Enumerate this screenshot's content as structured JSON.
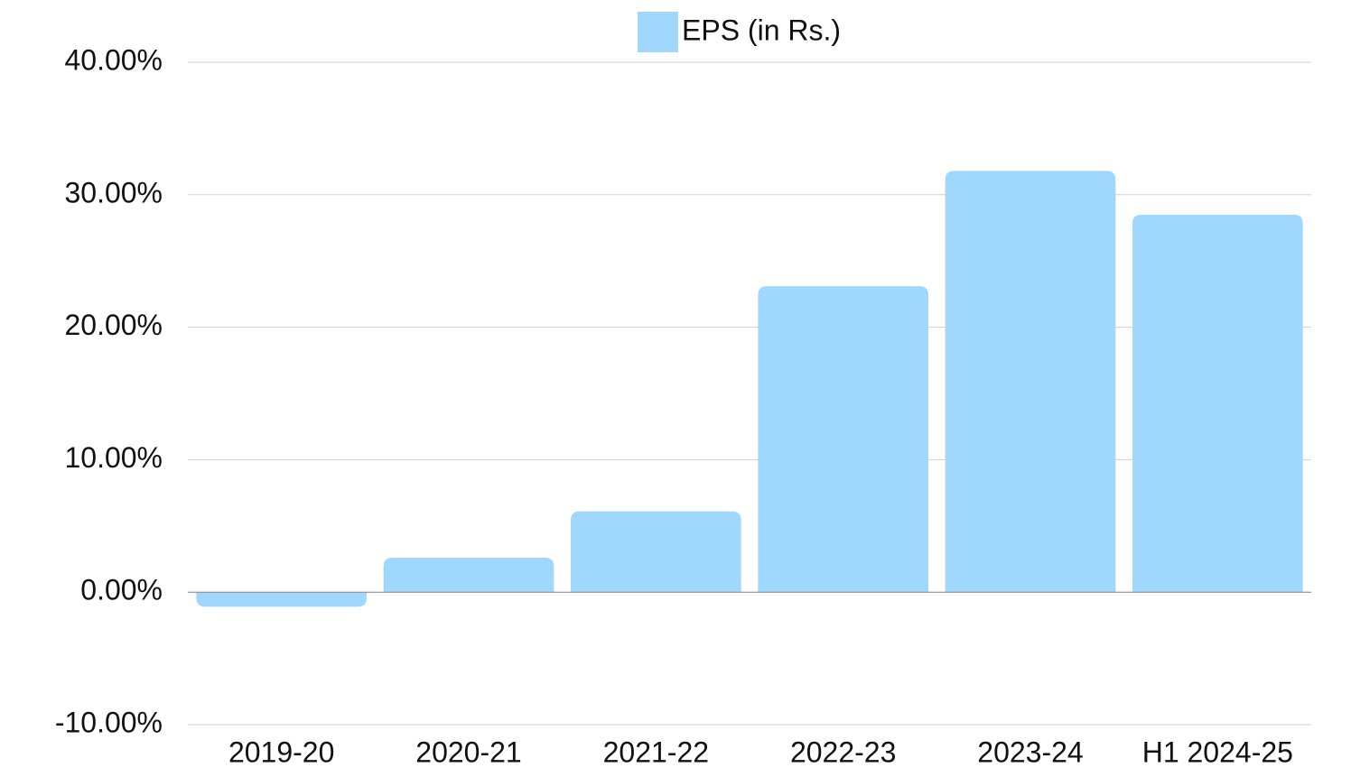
{
  "chart_data": {
    "type": "bar",
    "categories": [
      "2019-20",
      "2020-21",
      "2021-22",
      "2022-23",
      "2023-24",
      "H1 2024-25"
    ],
    "series": [
      {
        "name": "EPS (in Rs.)",
        "color": "#9fd8fc",
        "values": [
          -1.1,
          2.6,
          6.1,
          23.1,
          31.8,
          28.5
        ]
      }
    ],
    "ylim": [
      -10,
      40
    ],
    "yticks": [
      {
        "value": -10,
        "label": "-10.00%"
      },
      {
        "value": 0,
        "label": "0.00%"
      },
      {
        "value": 10,
        "label": "10.00%"
      },
      {
        "value": 20,
        "label": "20.00%"
      },
      {
        "value": 30,
        "label": "30.00%"
      },
      {
        "value": 40,
        "label": "40.00%"
      }
    ],
    "grid": true,
    "legend": "top"
  }
}
